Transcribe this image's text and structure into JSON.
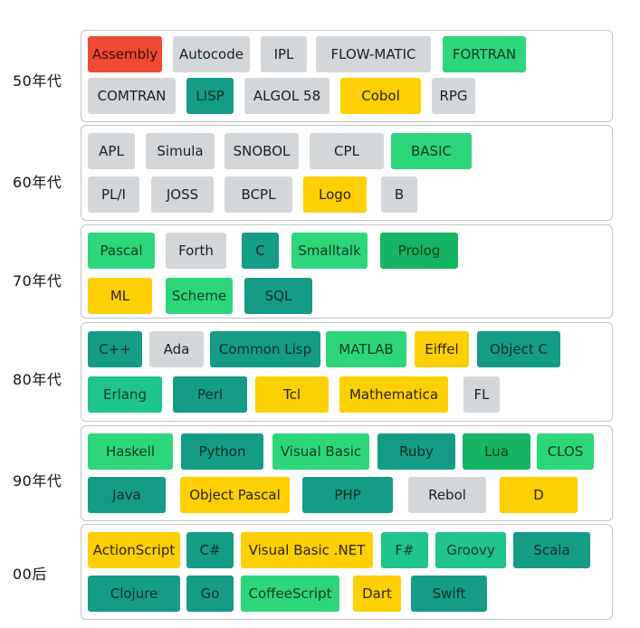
{
  "colors": {
    "red": "#ee4a36",
    "gray": "#d3d7d9",
    "green": "#2dd67b",
    "dark_green": "#16b563",
    "teal": "#149c86",
    "mint": "#1fc48e",
    "yellow": "#fed004",
    "border": "#bfc4c6"
  },
  "decades": [
    {
      "label": "50年代",
      "rows": [
        [
          {
            "name": "Assembly",
            "color": "red"
          },
          {
            "name": "Autocode",
            "color": "gray"
          },
          {
            "name": "IPL",
            "color": "gray"
          },
          {
            "name": "FLOW-MATIC",
            "color": "gray"
          },
          {
            "name": "FORTRAN",
            "color": "green"
          }
        ],
        [
          {
            "name": "COMTRAN",
            "color": "gray"
          },
          {
            "name": "LISP",
            "color": "teal"
          },
          {
            "name": "ALGOL 58",
            "color": "gray"
          },
          {
            "name": "Cobol",
            "color": "yellow"
          },
          {
            "name": "RPG",
            "color": "gray"
          }
        ]
      ]
    },
    {
      "label": "60年代",
      "rows": [
        [
          {
            "name": "APL",
            "color": "gray"
          },
          {
            "name": "Simula",
            "color": "gray"
          },
          {
            "name": "SNOBOL",
            "color": "gray"
          },
          {
            "name": "CPL",
            "color": "gray"
          },
          {
            "name": "BASIC",
            "color": "green"
          }
        ],
        [
          {
            "name": "PL/I",
            "color": "gray"
          },
          {
            "name": "JOSS",
            "color": "gray"
          },
          {
            "name": "BCPL",
            "color": "gray"
          },
          {
            "name": "Logo",
            "color": "yellow"
          },
          {
            "name": "B",
            "color": "gray"
          }
        ]
      ]
    },
    {
      "label": "70年代",
      "rows": [
        [
          {
            "name": "Pascal",
            "color": "green"
          },
          {
            "name": "Forth",
            "color": "gray"
          },
          {
            "name": "C",
            "color": "teal"
          },
          {
            "name": "Smalltalk",
            "color": "green"
          },
          {
            "name": "Prolog",
            "color": "dark_green"
          }
        ],
        [
          {
            "name": "ML",
            "color": "yellow"
          },
          {
            "name": "Scheme",
            "color": "green"
          },
          {
            "name": "SQL",
            "color": "teal"
          }
        ]
      ]
    },
    {
      "label": "80年代",
      "rows": [
        [
          {
            "name": "C++",
            "color": "teal"
          },
          {
            "name": "Ada",
            "color": "gray"
          },
          {
            "name": "Common Lisp",
            "color": "teal"
          },
          {
            "name": "MATLAB",
            "color": "green"
          },
          {
            "name": "Eiffel",
            "color": "yellow"
          },
          {
            "name": "Object C",
            "color": "teal"
          }
        ],
        [
          {
            "name": "Erlang",
            "color": "mint"
          },
          {
            "name": "Perl",
            "color": "teal"
          },
          {
            "name": "Tcl",
            "color": "yellow"
          },
          {
            "name": "Mathematica",
            "color": "yellow"
          },
          {
            "name": "FL",
            "color": "gray"
          }
        ]
      ]
    },
    {
      "label": "90年代",
      "rows": [
        [
          {
            "name": "Haskell",
            "color": "green"
          },
          {
            "name": "Python",
            "color": "teal"
          },
          {
            "name": "Visual Basic",
            "color": "green"
          },
          {
            "name": "Ruby",
            "color": "teal"
          },
          {
            "name": "Lua",
            "color": "dark_green"
          },
          {
            "name": "CLOS",
            "color": "green"
          }
        ],
        [
          {
            "name": "Java",
            "color": "teal"
          },
          {
            "name": "Object Pascal",
            "color": "yellow"
          },
          {
            "name": "PHP",
            "color": "teal"
          },
          {
            "name": "Rebol",
            "color": "gray"
          },
          {
            "name": "D",
            "color": "yellow"
          }
        ]
      ]
    },
    {
      "label": "00后",
      "rows": [
        [
          {
            "name": "ActionScript",
            "color": "yellow"
          },
          {
            "name": "C#",
            "color": "teal"
          },
          {
            "name": "Visual Basic .NET",
            "color": "yellow"
          },
          {
            "name": "F#",
            "color": "mint"
          },
          {
            "name": "Groovy",
            "color": "mint"
          },
          {
            "name": "Scala",
            "color": "teal"
          }
        ],
        [
          {
            "name": "Clojure",
            "color": "teal"
          },
          {
            "name": "Go",
            "color": "teal"
          },
          {
            "name": "CoffeeScript",
            "color": "green"
          },
          {
            "name": "Dart",
            "color": "yellow"
          },
          {
            "name": "Swift",
            "color": "teal"
          }
        ]
      ]
    }
  ]
}
